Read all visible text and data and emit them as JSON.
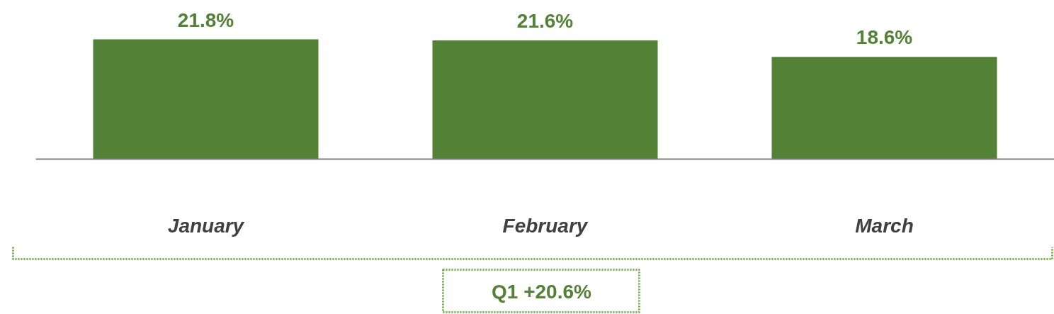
{
  "chart_data": {
    "type": "bar",
    "categories": [
      "January",
      "February",
      "March"
    ],
    "values": [
      21.8,
      21.6,
      18.6
    ],
    "color": "#538135",
    "value_labels": [
      "21.8%",
      "21.6%",
      "18.6%"
    ],
    "annotations": [
      "Q1 +20.6%"
    ]
  }
}
